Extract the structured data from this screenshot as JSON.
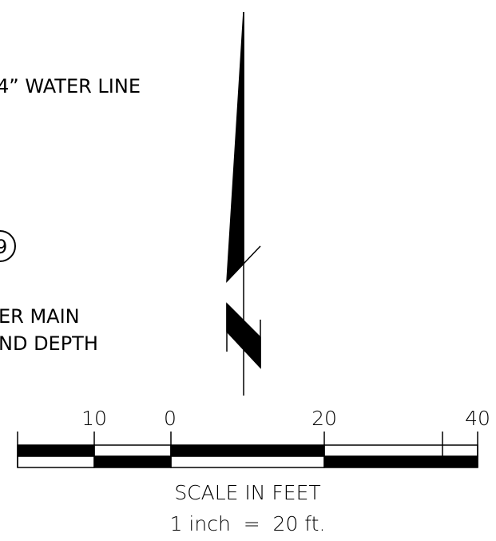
{
  "notes": {
    "water_line": "4” WATER LINE",
    "marker": "9",
    "main_line1": "ER MAIN",
    "main_line2": "ND DEPTH"
  },
  "scale": {
    "labels": [
      "10",
      "0",
      "20",
      "40"
    ],
    "title": "SCALE IN FEET",
    "ratio": "1 inch  =  20 ft."
  }
}
